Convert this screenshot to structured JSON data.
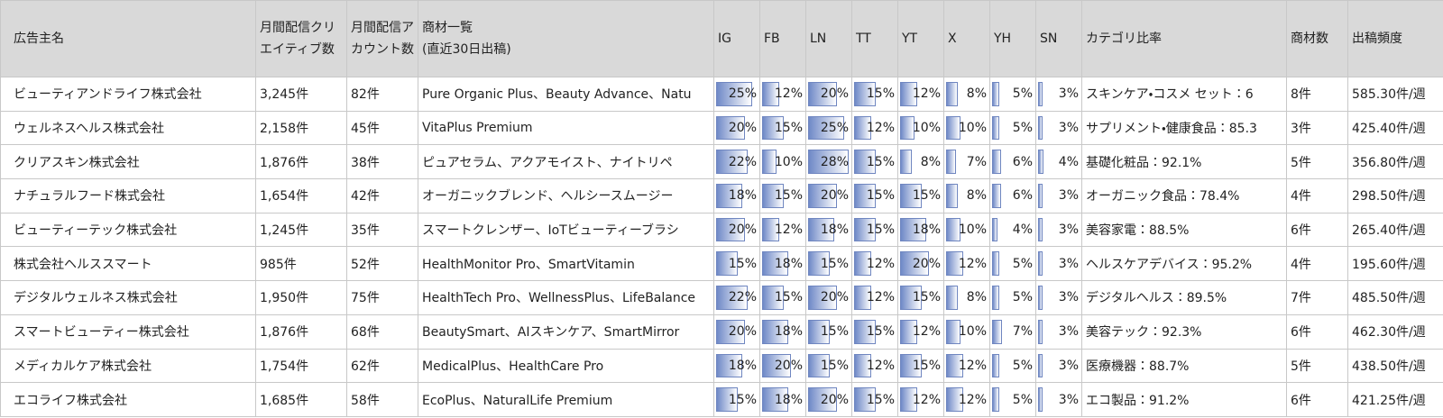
{
  "table": {
    "headers": [
      "広告主名",
      "月間配信クリエイティブ数",
      "月間配信アカウント数",
      "商材一覧\n(直近30日出稿)",
      "IG",
      "FB",
      "LN",
      "TT",
      "YT",
      "X",
      "YH",
      "SN",
      "カテゴリ比率",
      "商材数",
      "出稿頻度"
    ],
    "rows": [
      [
        "ビューティアンドライフ株式会社",
        "3,245件",
        "82件",
        "Pure Organic Plus、Beauty Advance、Natu",
        {
          "value": 25,
          "label": "25%"
        },
        {
          "value": 12,
          "label": "12%"
        },
        {
          "value": 20,
          "label": "20%"
        },
        {
          "value": 15,
          "label": "15%"
        },
        {
          "value": 12,
          "label": "12%"
        },
        {
          "value": 8,
          "label": "8%"
        },
        {
          "value": 5,
          "label": "5%"
        },
        {
          "value": 3,
          "label": "3%"
        },
        "スキンケア・コスメ セット：6",
        "8件",
        "585.30件/週"
      ],
      [
        "ウェルネスヘルス株式会社",
        "2,158件",
        "45件",
        "VitaPlus Premium",
        {
          "value": 20,
          "label": "20%"
        },
        {
          "value": 15,
          "label": "15%"
        },
        {
          "value": 25,
          "label": "25%"
        },
        {
          "value": 12,
          "label": "12%"
        },
        {
          "value": 10,
          "label": "10%"
        },
        {
          "value": 10,
          "label": "10%"
        },
        {
          "value": 5,
          "label": "5%"
        },
        {
          "value": 3,
          "label": "3%"
        },
        "サプリメント・健康食品：85.3",
        "3件",
        "425.40件/週"
      ],
      [
        "クリアスキン株式会社",
        "1,876件",
        "38件",
        "ピュアセラム、アクアモイスト、ナイトリペ",
        {
          "value": 22,
          "label": "22%"
        },
        {
          "value": 10,
          "label": "10%"
        },
        {
          "value": 28,
          "label": "28%"
        },
        {
          "value": 15,
          "label": "15%"
        },
        {
          "value": 8,
          "label": "8%"
        },
        {
          "value": 7,
          "label": "7%"
        },
        {
          "value": 6,
          "label": "6%"
        },
        {
          "value": 4,
          "label": "4%"
        },
        "基礎化粧品：92.1%",
        "5件",
        "356.80件/週"
      ],
      [
        "ナチュラルフード株式会社",
        "1,654件",
        "42件",
        "オーガニックブレンド、ヘルシースムージー",
        {
          "value": 18,
          "label": "18%"
        },
        {
          "value": 15,
          "label": "15%"
        },
        {
          "value": 20,
          "label": "20%"
        },
        {
          "value": 15,
          "label": "15%"
        },
        {
          "value": 15,
          "label": "15%"
        },
        {
          "value": 8,
          "label": "8%"
        },
        {
          "value": 6,
          "label": "6%"
        },
        {
          "value": 3,
          "label": "3%"
        },
        "オーガニック食品：78.4%",
        "4件",
        "298.50件/週"
      ],
      [
        "ビューティーテック株式会社",
        "1,245件",
        "35件",
        "スマートクレンザー、IoTビューティーブラシ",
        {
          "value": 20,
          "label": "20%"
        },
        {
          "value": 12,
          "label": "12%"
        },
        {
          "value": 18,
          "label": "18%"
        },
        {
          "value": 15,
          "label": "15%"
        },
        {
          "value": 18,
          "label": "18%"
        },
        {
          "value": 10,
          "label": "10%"
        },
        {
          "value": 4,
          "label": "4%"
        },
        {
          "value": 3,
          "label": "3%"
        },
        "美容家電：88.5%",
        "6件",
        "265.40件/週"
      ],
      [
        "株式会社ヘルススマート",
        "985件",
        "52件",
        "HealthMonitor Pro、SmartVitamin",
        {
          "value": 15,
          "label": "15%"
        },
        {
          "value": 18,
          "label": "18%"
        },
        {
          "value": 15,
          "label": "15%"
        },
        {
          "value": 12,
          "label": "12%"
        },
        {
          "value": 20,
          "label": "20%"
        },
        {
          "value": 12,
          "label": "12%"
        },
        {
          "value": 5,
          "label": "5%"
        },
        {
          "value": 3,
          "label": "3%"
        },
        "ヘルスケアデバイス：95.2%",
        "4件",
        "195.60件/週"
      ],
      [
        "デジタルウェルネス株式会社",
        "1,950件",
        "75件",
        "HealthTech Pro、WellnessPlus、LifeBalance",
        {
          "value": 22,
          "label": "22%"
        },
        {
          "value": 15,
          "label": "15%"
        },
        {
          "value": 20,
          "label": "20%"
        },
        {
          "value": 12,
          "label": "12%"
        },
        {
          "value": 15,
          "label": "15%"
        },
        {
          "value": 8,
          "label": "8%"
        },
        {
          "value": 5,
          "label": "5%"
        },
        {
          "value": 3,
          "label": "3%"
        },
        "デジタルヘルス：89.5%",
        "7件",
        "485.50件/週"
      ],
      [
        "スマートビューティー株式会社",
        "1,876件",
        "68件",
        "BeautySmart、AIスキンケア、SmartMirror",
        {
          "value": 20,
          "label": "20%"
        },
        {
          "value": 18,
          "label": "18%"
        },
        {
          "value": 15,
          "label": "15%"
        },
        {
          "value": 15,
          "label": "15%"
        },
        {
          "value": 12,
          "label": "12%"
        },
        {
          "value": 10,
          "label": "10%"
        },
        {
          "value": 7,
          "label": "7%"
        },
        {
          "value": 3,
          "label": "3%"
        },
        "美容テック：92.3%",
        "6件",
        "462.30件/週"
      ],
      [
        "メディカルケア株式会社",
        "1,754件",
        "62件",
        "MedicalPlus、HealthCare Pro",
        {
          "value": 18,
          "label": "18%"
        },
        {
          "value": 20,
          "label": "20%"
        },
        {
          "value": 15,
          "label": "15%"
        },
        {
          "value": 12,
          "label": "12%"
        },
        {
          "value": 15,
          "label": "15%"
        },
        {
          "value": 12,
          "label": "12%"
        },
        {
          "value": 5,
          "label": "5%"
        },
        {
          "value": 3,
          "label": "3%"
        },
        "医療機器：88.7%",
        "5件",
        "438.50件/週"
      ],
      [
        "エコライフ株式会社",
        "1,685件",
        "58件",
        "EcoPlus、NaturalLife Premium",
        {
          "value": 15,
          "label": "15%"
        },
        {
          "value": 18,
          "label": "18%"
        },
        {
          "value": 20,
          "label": "20%"
        },
        {
          "value": 15,
          "label": "15%"
        },
        {
          "value": 12,
          "label": "12%"
        },
        {
          "value": 12,
          "label": "12%"
        },
        {
          "value": 5,
          "label": "5%"
        },
        {
          "value": 3,
          "label": "3%"
        },
        "エコ製品：91.2%",
        "6件",
        "421.25件/週"
      ]
    ]
  }
}
